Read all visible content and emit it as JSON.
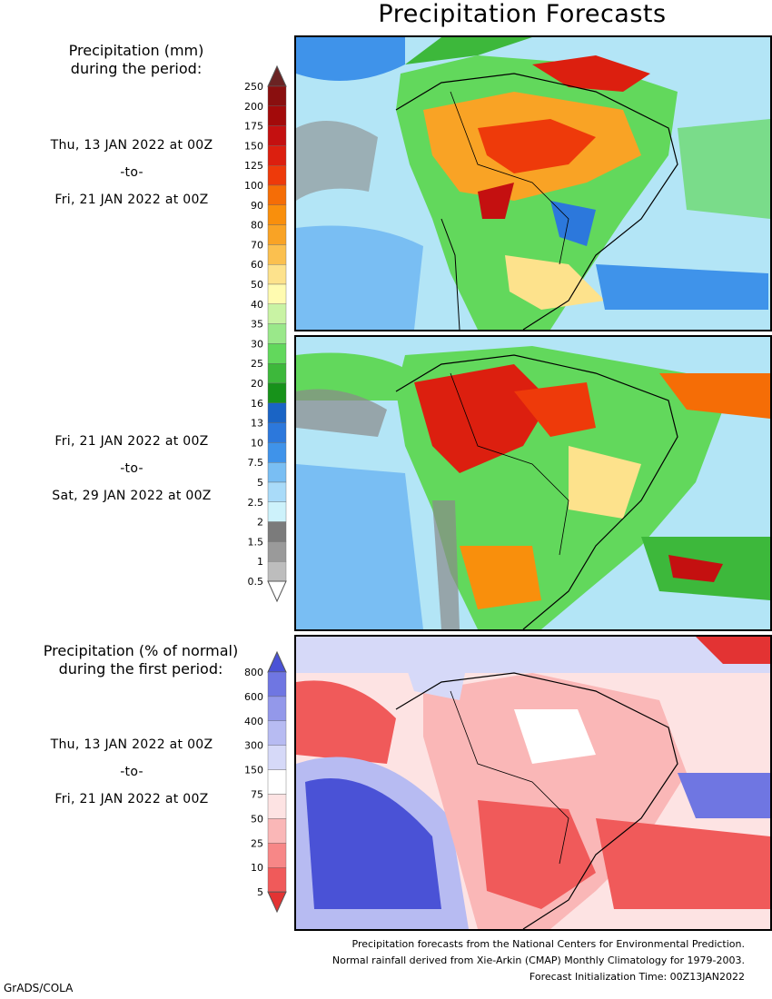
{
  "header": {
    "title": "Precipitation Forecasts"
  },
  "legend_mm": {
    "heading_line1": "Precipitation (mm)",
    "heading_line2": "during the period:",
    "ticks": [
      "250",
      "200",
      "175",
      "150",
      "125",
      "100",
      "90",
      "80",
      "70",
      "60",
      "50",
      "40",
      "35",
      "30",
      "25",
      "20",
      "16",
      "13",
      "10",
      "7.5",
      "5",
      "2.5",
      "2",
      "1.5",
      "1",
      "0.5"
    ],
    "colors": [
      "#6b2323",
      "#8a0f0f",
      "#a30a0a",
      "#c41010",
      "#dc1f0f",
      "#ee3a0a",
      "#f56d06",
      "#f98f0c",
      "#f9a325",
      "#fbc04f",
      "#fde28c",
      "#fffbb0",
      "#c9f3a4",
      "#9ae88a",
      "#62d85c",
      "#3db83b",
      "#17921a",
      "#1a64c5",
      "#2c78dc",
      "#3f93ea",
      "#79bef3",
      "#a9dbf9",
      "#cdf2fb",
      "#7b7b7b",
      "#9a9a9a",
      "#bdbdbd",
      "#ffffff"
    ]
  },
  "periods": [
    {
      "from": "Thu, 13 JAN 2022 at 00Z",
      "sep": "-to-",
      "to": "Fri, 21 JAN 2022 at 00Z"
    },
    {
      "from": "Fri, 21 JAN 2022 at 00Z",
      "sep": "-to-",
      "to": "Sat, 29 JAN 2022 at 00Z"
    },
    {
      "from": "Thu, 13 JAN 2022 at 00Z",
      "sep": "-to-",
      "to": "Fri, 21 JAN 2022 at 00Z"
    }
  ],
  "legend_pct": {
    "heading_line1": "Precipitation (% of normal)",
    "heading_line2": "during the first period:",
    "ticks": [
      "800",
      "600",
      "400",
      "300",
      "150",
      "75",
      "50",
      "25",
      "10",
      "5"
    ],
    "colors": [
      "#4a52d6",
      "#6f76e2",
      "#9398ea",
      "#b7bbf2",
      "#d6d9f8",
      "#ffffff",
      "#fde3e3",
      "#fab7b7",
      "#f78787",
      "#f05a5a",
      "#e33333"
    ]
  },
  "footer": {
    "line1": "Precipitation forecasts from the National Centers for Environmental Prediction.",
    "line2": "Normal rainfall derived from Xie-Arkin (CMAP) Monthly Climatology for 1979-2003.",
    "line3": "Forecast Initialization Time: 00Z13JAN2022",
    "grads": "GrADS/COLA"
  }
}
